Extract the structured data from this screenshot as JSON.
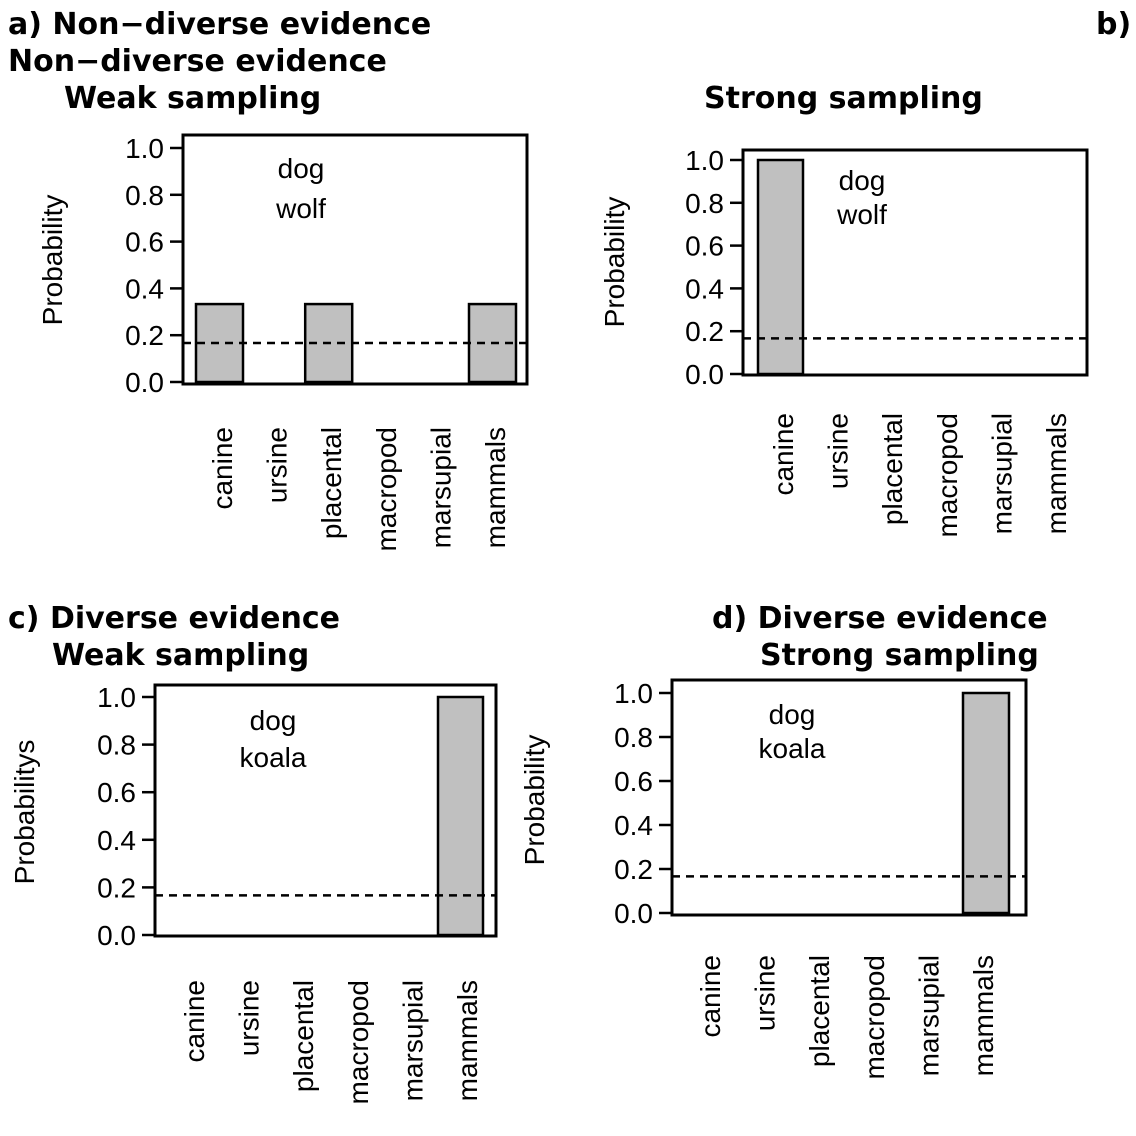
{
  "headings": {
    "a_line1": "a) Non−diverse evidence",
    "a_line2": "Non−diverse evidence",
    "b_letter": "b)",
    "c_line1": "c) Diverse evidence",
    "d_line1": "d) Diverse evidence"
  },
  "chart_data": [
    {
      "panel": "a",
      "type": "bar",
      "title": "Weak sampling",
      "ylabel": "Probability",
      "categories": [
        "canine",
        "ursine",
        "placental",
        "macropod",
        "marsupial",
        "mammals"
      ],
      "values": [
        0.333,
        0,
        0.333,
        0,
        0,
        0.333
      ],
      "reference_line": 0.1667,
      "annotation": [
        "dog",
        "wolf"
      ],
      "ylim": [
        0,
        1
      ],
      "yticks": [
        "0.0",
        "0.2",
        "0.4",
        "0.6",
        "0.8",
        "1.0"
      ],
      "bar_color": "#c0c0c0"
    },
    {
      "panel": "b",
      "type": "bar",
      "title": "Strong sampling",
      "ylabel": "Probability",
      "categories": [
        "canine",
        "ursine",
        "placental",
        "macropod",
        "marsupial",
        "mammals"
      ],
      "values": [
        1.0,
        0,
        0,
        0,
        0,
        0
      ],
      "reference_line": 0.1667,
      "annotation": [
        "dog",
        "wolf"
      ],
      "ylim": [
        0,
        1
      ],
      "yticks": [
        "0.0",
        "0.2",
        "0.4",
        "0.6",
        "0.8",
        "1.0"
      ],
      "bar_color": "#c0c0c0"
    },
    {
      "panel": "c",
      "type": "bar",
      "title": "Weak sampling",
      "ylabel": "Probabilitys",
      "categories": [
        "canine",
        "ursine",
        "placental",
        "macropod",
        "marsupial",
        "mammals"
      ],
      "values": [
        0,
        0,
        0,
        0,
        0,
        1.0
      ],
      "reference_line": 0.1667,
      "annotation": [
        "dog",
        "koala"
      ],
      "ylim": [
        0,
        1
      ],
      "yticks": [
        "0.0",
        "0.2",
        "0.4",
        "0.6",
        "0.8",
        "1.0"
      ],
      "bar_color": "#c0c0c0"
    },
    {
      "panel": "d",
      "type": "bar",
      "title": "Strong sampling",
      "ylabel": "Probability",
      "categories": [
        "canine",
        "ursine",
        "placental",
        "macropod",
        "marsupial",
        "mammals"
      ],
      "values": [
        0,
        0,
        0,
        0,
        0,
        1.0
      ],
      "reference_line": 0.1667,
      "annotation": [
        "dog",
        "koala"
      ],
      "ylim": [
        0,
        1
      ],
      "yticks": [
        "0.0",
        "0.2",
        "0.4",
        "0.6",
        "0.8",
        "1.0"
      ],
      "bar_color": "#c0c0c0"
    }
  ]
}
